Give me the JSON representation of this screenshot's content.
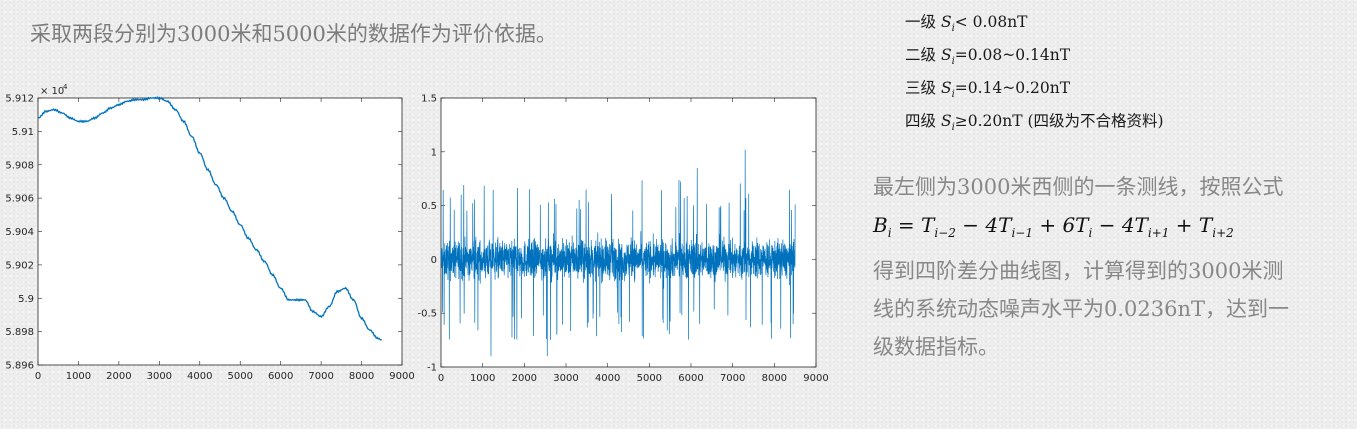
{
  "header": {
    "text": "采取两段分别为3000米和5000米的数据作为评价依据。"
  },
  "levels": [
    {
      "label": "一级",
      "var": "S",
      "sub": "i",
      "cond": "< 0.08nT"
    },
    {
      "label": "二级",
      "var": "S",
      "sub": "i",
      "cond": "=0.08~0.14nT"
    },
    {
      "label": "三级",
      "var": "S",
      "sub": "i",
      "cond": "=0.14~0.20nT"
    },
    {
      "label": "四级",
      "var": "S",
      "sub": "i",
      "cond": "≥0.20nT (四级为不合格资料)"
    }
  ],
  "description": {
    "line1": "最左侧为3000米西侧的一条测线，按照公式",
    "formula": "B_i = T_{i-2} - 4T_{i-1} + 6T_i - 4T_{i+1} + T_{i+2}",
    "line3": "得到四阶差分曲线图，计算得到的3000米测",
    "line4": "线的系统动态噪声水平为0.0236nT，达到一",
    "line5": "级数据指标。"
  },
  "chart_data": [
    {
      "type": "line",
      "x_ticks": [
        "0",
        "1000",
        "2000",
        "3000",
        "4000",
        "5000",
        "6000",
        "7000",
        "8000",
        "9000"
      ],
      "y_ticks": [
        "5.896",
        "5.898",
        "5.9",
        "5.902",
        "5.904",
        "5.906",
        "5.908",
        "5.91",
        "5.912"
      ],
      "y_exponent": "× 10^4",
      "xlim": [
        0,
        9000
      ],
      "ylim": [
        5.896,
        5.912
      ],
      "series": [
        {
          "x": [
            0,
            200,
            400,
            600,
            800,
            1000,
            1200,
            1400,
            1600,
            1800,
            2000,
            2200,
            2400,
            2600,
            2800,
            3000,
            3200,
            3400,
            3600,
            3800,
            4000,
            4200,
            4400,
            4600,
            4800,
            5000,
            5200,
            5400,
            5600,
            5800,
            6000,
            6200,
            6400,
            6600,
            6800,
            7000,
            7200,
            7400,
            7600,
            7800,
            8000,
            8200,
            8400,
            8500
          ],
          "y": [
            5.9108,
            5.9112,
            5.9113,
            5.9111,
            5.9108,
            5.9106,
            5.9106,
            5.9108,
            5.9111,
            5.9114,
            5.9116,
            5.9118,
            5.9119,
            5.9119,
            5.912,
            5.912,
            5.9118,
            5.9113,
            5.9106,
            5.9097,
            5.9087,
            5.9077,
            5.9068,
            5.906,
            5.9052,
            5.9044,
            5.9036,
            5.9029,
            5.9022,
            5.9014,
            5.9006,
            5.8999,
            5.8999,
            5.8999,
            5.8992,
            5.8989,
            5.8995,
            5.9004,
            5.9006,
            5.8999,
            5.8988,
            5.8981,
            5.8976,
            5.8975
          ]
        }
      ]
    },
    {
      "type": "line",
      "x_ticks": [
        "0",
        "1000",
        "2000",
        "3000",
        "4000",
        "5000",
        "6000",
        "7000",
        "8000",
        "9000"
      ],
      "y_ticks": [
        "-1",
        "-0.5",
        "0",
        "0.5",
        "1",
        "1.5"
      ],
      "xlim": [
        0,
        9000
      ],
      "ylim": [
        -1,
        1.5
      ],
      "samples": 8500,
      "amplitude_typical": 0.3,
      "spikes": [
        {
          "x": 2550,
          "y": 0.95
        },
        {
          "x": 7300,
          "y": 1.02
        },
        {
          "x": 1200,
          "y": -0.9
        },
        {
          "x": 2550,
          "y": -0.9
        },
        {
          "x": 6150,
          "y": 0.85
        },
        {
          "x": 8450,
          "y": -0.6
        }
      ]
    }
  ]
}
